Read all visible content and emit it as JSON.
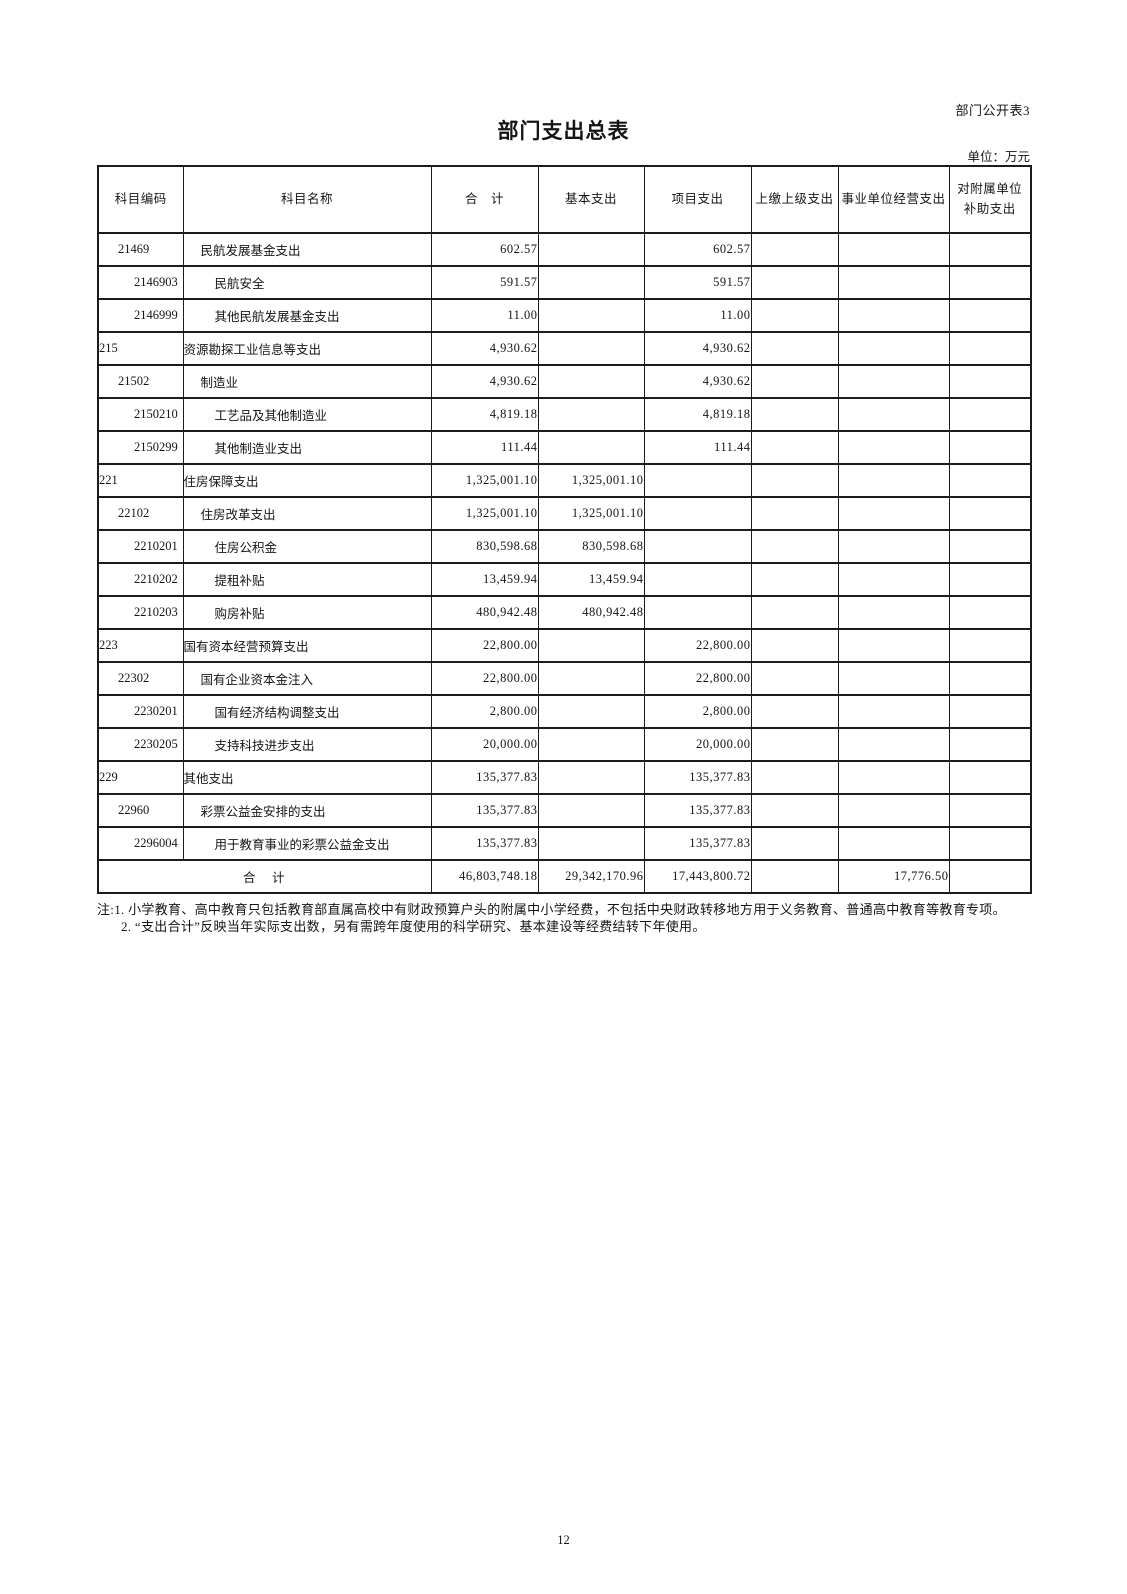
{
  "page": {
    "doc_label": "部门公开表3",
    "title": "部门支出总表",
    "unit_label": "单位：万元",
    "page_number": "12"
  },
  "table": {
    "headers": [
      "科目编码",
      "科目名称",
      "合　计",
      "基本支出",
      "项目支出",
      "上缴上级支出",
      "事业单位经营支出",
      "对附属单位\n补助支出"
    ],
    "rows": [
      {
        "code": "21469",
        "name": "民航发展基金支出",
        "level": 1,
        "total": "602.57",
        "basic": "",
        "project": "602.57",
        "upper": "",
        "operating": "",
        "subsidy": ""
      },
      {
        "code": "2146903",
        "name": "民航安全",
        "level": 2,
        "total": "591.57",
        "basic": "",
        "project": "591.57",
        "upper": "",
        "operating": "",
        "subsidy": ""
      },
      {
        "code": "2146999",
        "name": "其他民航发展基金支出",
        "level": 2,
        "total": "11.00",
        "basic": "",
        "project": "11.00",
        "upper": "",
        "operating": "",
        "subsidy": ""
      },
      {
        "code": "215",
        "name": "资源勘探工业信息等支出",
        "level": 0,
        "total": "4,930.62",
        "basic": "",
        "project": "4,930.62",
        "upper": "",
        "operating": "",
        "subsidy": ""
      },
      {
        "code": "21502",
        "name": "制造业",
        "level": 1,
        "total": "4,930.62",
        "basic": "",
        "project": "4,930.62",
        "upper": "",
        "operating": "",
        "subsidy": ""
      },
      {
        "code": "2150210",
        "name": "工艺品及其他制造业",
        "level": 2,
        "total": "4,819.18",
        "basic": "",
        "project": "4,819.18",
        "upper": "",
        "operating": "",
        "subsidy": ""
      },
      {
        "code": "2150299",
        "name": "其他制造业支出",
        "level": 2,
        "total": "111.44",
        "basic": "",
        "project": "111.44",
        "upper": "",
        "operating": "",
        "subsidy": ""
      },
      {
        "code": "221",
        "name": "住房保障支出",
        "level": 0,
        "total": "1,325,001.10",
        "basic": "1,325,001.10",
        "project": "",
        "upper": "",
        "operating": "",
        "subsidy": ""
      },
      {
        "code": "22102",
        "name": "住房改革支出",
        "level": 1,
        "total": "1,325,001.10",
        "basic": "1,325,001.10",
        "project": "",
        "upper": "",
        "operating": "",
        "subsidy": ""
      },
      {
        "code": "2210201",
        "name": "住房公积金",
        "level": 2,
        "total": "830,598.68",
        "basic": "830,598.68",
        "project": "",
        "upper": "",
        "operating": "",
        "subsidy": ""
      },
      {
        "code": "2210202",
        "name": "提租补贴",
        "level": 2,
        "total": "13,459.94",
        "basic": "13,459.94",
        "project": "",
        "upper": "",
        "operating": "",
        "subsidy": ""
      },
      {
        "code": "2210203",
        "name": "购房补贴",
        "level": 2,
        "total": "480,942.48",
        "basic": "480,942.48",
        "project": "",
        "upper": "",
        "operating": "",
        "subsidy": ""
      },
      {
        "code": "223",
        "name": "国有资本经营预算支出",
        "level": 0,
        "total": "22,800.00",
        "basic": "",
        "project": "22,800.00",
        "upper": "",
        "operating": "",
        "subsidy": ""
      },
      {
        "code": "22302",
        "name": "国有企业资本金注入",
        "level": 1,
        "total": "22,800.00",
        "basic": "",
        "project": "22,800.00",
        "upper": "",
        "operating": "",
        "subsidy": ""
      },
      {
        "code": "2230201",
        "name": "国有经济结构调整支出",
        "level": 2,
        "total": "2,800.00",
        "basic": "",
        "project": "2,800.00",
        "upper": "",
        "operating": "",
        "subsidy": ""
      },
      {
        "code": "2230205",
        "name": "支持科技进步支出",
        "level": 2,
        "total": "20,000.00",
        "basic": "",
        "project": "20,000.00",
        "upper": "",
        "operating": "",
        "subsidy": ""
      },
      {
        "code": "229",
        "name": "其他支出",
        "level": 0,
        "total": "135,377.83",
        "basic": "",
        "project": "135,377.83",
        "upper": "",
        "operating": "",
        "subsidy": ""
      },
      {
        "code": "22960",
        "name": "彩票公益金安排的支出",
        "level": 1,
        "total": "135,377.83",
        "basic": "",
        "project": "135,377.83",
        "upper": "",
        "operating": "",
        "subsidy": ""
      },
      {
        "code": "2296004",
        "name": "用于教育事业的彩票公益金支出",
        "level": 2,
        "total": "135,377.83",
        "basic": "",
        "project": "135,377.83",
        "upper": "",
        "operating": "",
        "subsidy": ""
      }
    ],
    "total_row": {
      "label": "合　计",
      "total": "46,803,748.18",
      "basic": "29,342,170.96",
      "project": "17,443,800.72",
      "upper": "",
      "operating": "17,776.50",
      "subsidy": ""
    }
  },
  "notes": [
    "注:1. 小学教育、高中教育只包括教育部直属高校中有财政预算户头的附属中小学经费，不包括中央财政转移地方用于义务教育、普通高中教育等教育专项。",
    "2. “支出合计”反映当年实际支出数，另有需跨年度使用的科学研究、基本建设等经费结转下年使用。"
  ]
}
